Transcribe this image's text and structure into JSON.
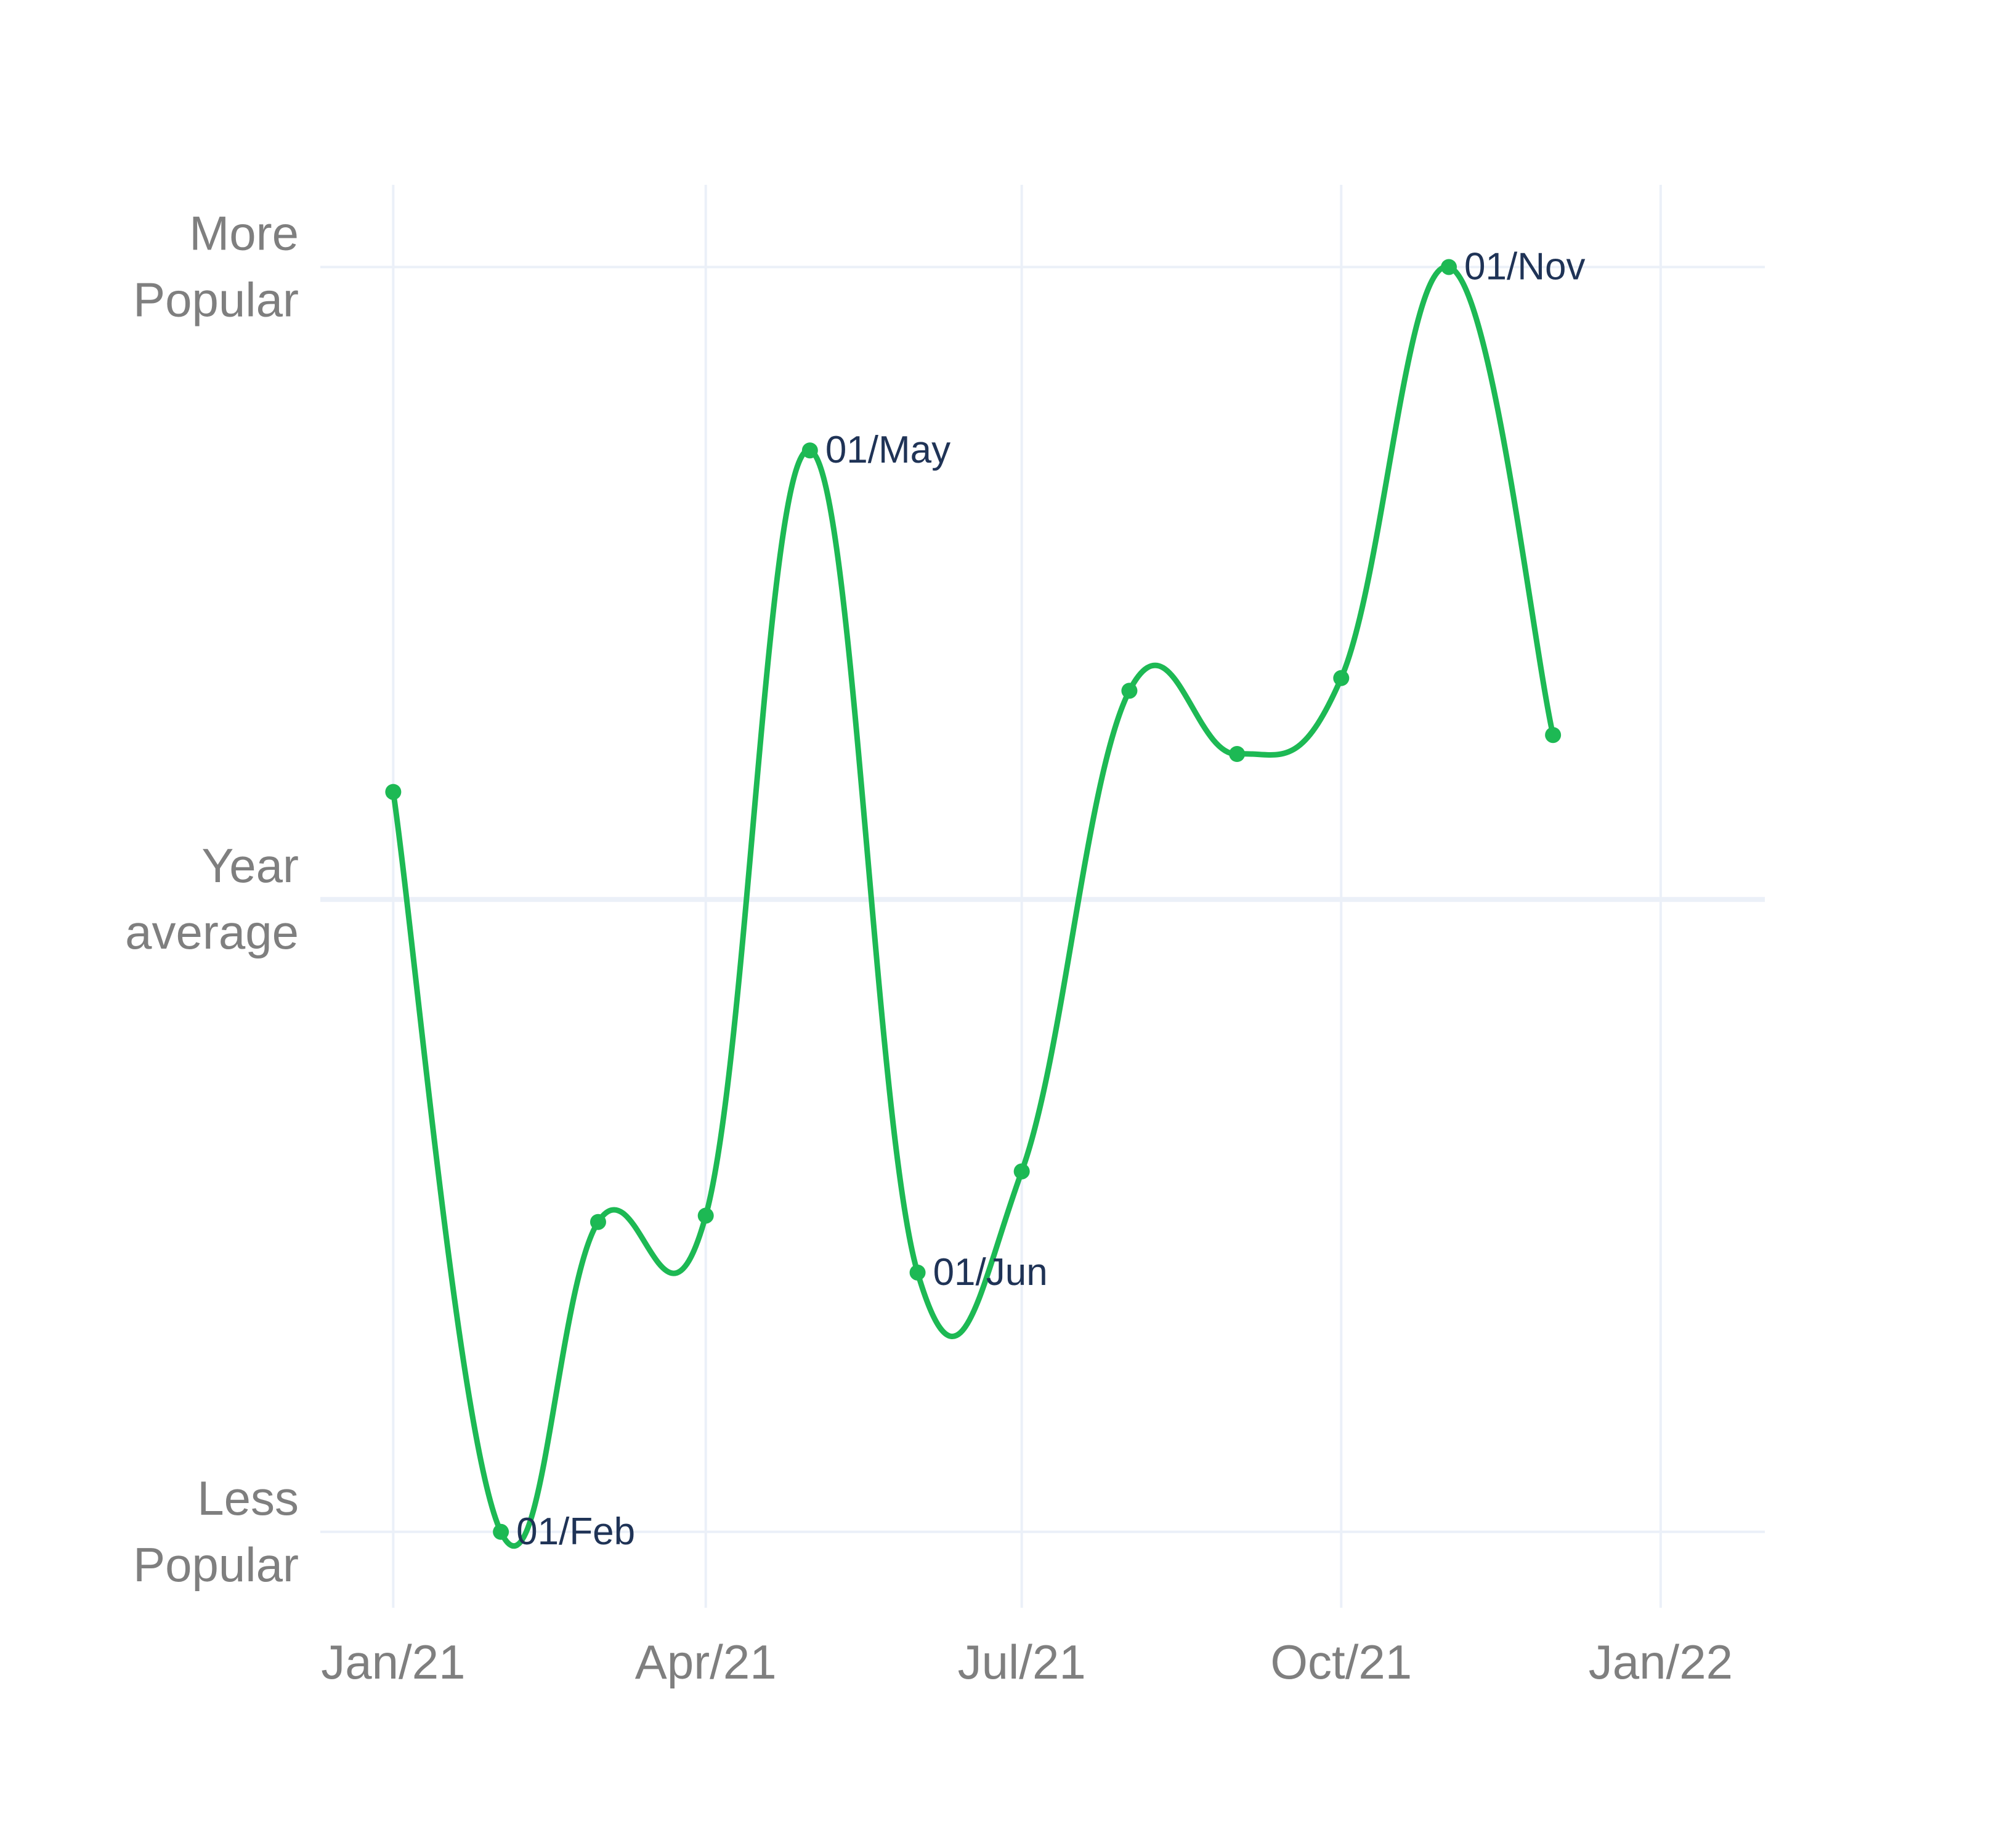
{
  "chart_data": {
    "type": "line",
    "title": "",
    "xlabel": "",
    "ylabel": "",
    "x_ticks": [
      "Jan/21",
      "Apr/21",
      "Jul/21",
      "Oct/21",
      "Jan/22"
    ],
    "y_ticks": [
      {
        "value": -1,
        "lines": [
          "Less",
          "Popular"
        ]
      },
      {
        "value": 0,
        "lines": [
          "Year",
          "average"
        ]
      },
      {
        "value": 1,
        "lines": [
          "More",
          "Popular"
        ]
      }
    ],
    "ylim": [
      -1.12,
      1.13
    ],
    "xlim": [
      "2020-12-11",
      "2022-01-31"
    ],
    "grid": true,
    "line_shape": "spline",
    "series": [
      {
        "color": "#1db954",
        "points": [
          {
            "x": "2021-01-01",
            "y": 0.17,
            "label": ""
          },
          {
            "x": "2021-02-01",
            "y": -1.0,
            "label": "01/Feb"
          },
          {
            "x": "2021-03-01",
            "y": -0.51,
            "label": ""
          },
          {
            "x": "2021-04-01",
            "y": -0.5,
            "label": ""
          },
          {
            "x": "2021-05-01",
            "y": 0.71,
            "label": "01/May"
          },
          {
            "x": "2021-06-01",
            "y": -0.59,
            "label": "01/Jun"
          },
          {
            "x": "2021-07-01",
            "y": -0.43,
            "label": ""
          },
          {
            "x": "2021-08-01",
            "y": 0.33,
            "label": ""
          },
          {
            "x": "2021-09-01",
            "y": 0.23,
            "label": ""
          },
          {
            "x": "2021-10-01",
            "y": 0.35,
            "label": ""
          },
          {
            "x": "2021-11-01",
            "y": 1.0,
            "label": "01/Nov"
          },
          {
            "x": "2021-12-01",
            "y": 0.26,
            "label": ""
          }
        ]
      }
    ]
  }
}
